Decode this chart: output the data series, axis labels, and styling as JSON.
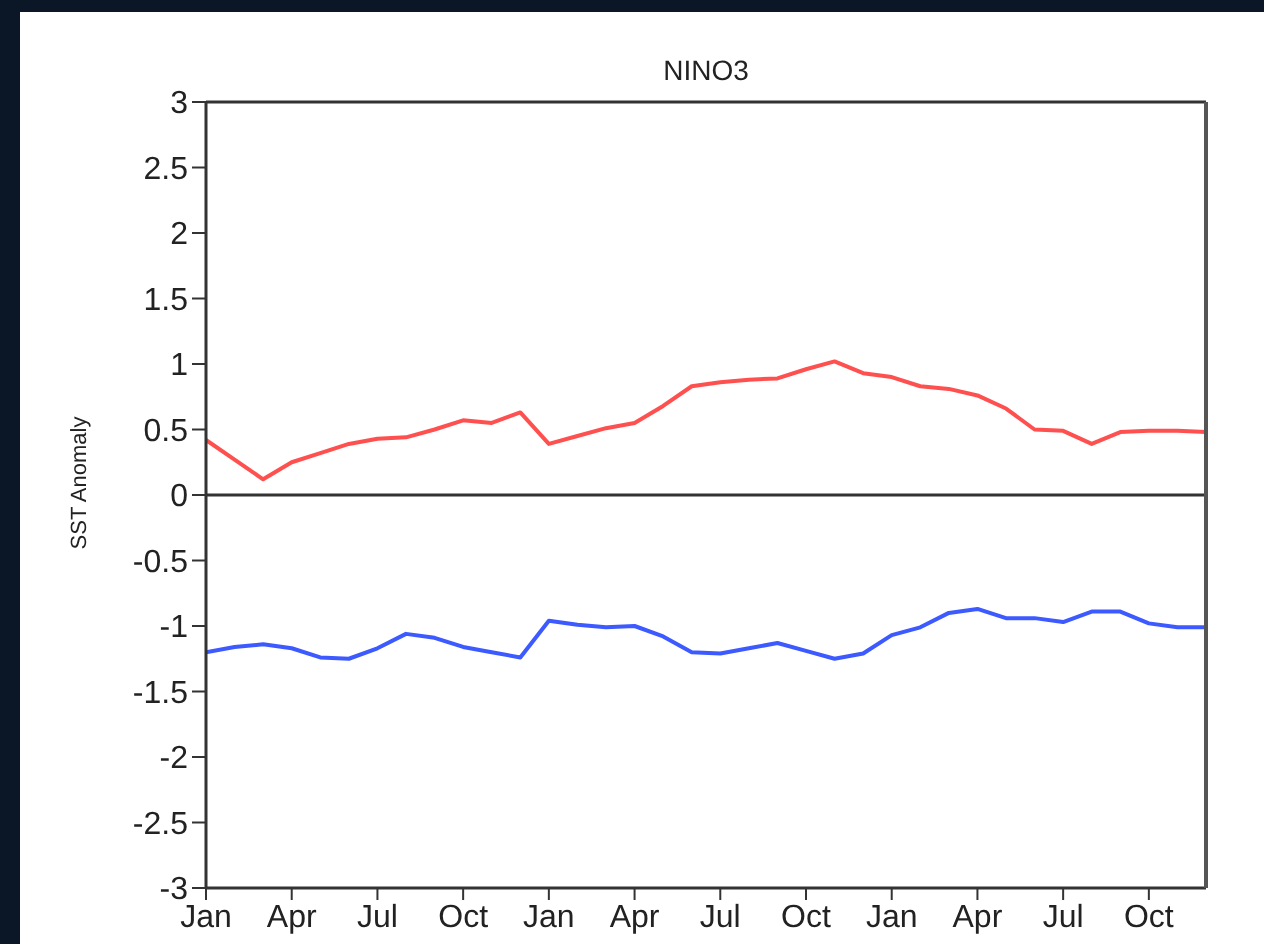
{
  "chart_data": {
    "type": "line",
    "title": "NINO3",
    "ylabel": "SST Anomaly",
    "categories": [
      "Jan",
      null,
      null,
      "Apr",
      null,
      null,
      "Jul",
      null,
      null,
      "Oct",
      null,
      null,
      "Jan",
      null,
      null,
      "Apr",
      null,
      null,
      "Jul",
      null,
      null,
      "Oct",
      null,
      null,
      "Jan",
      null,
      null,
      "Apr",
      null,
      null,
      "Jul",
      null,
      null,
      "Oct",
      null,
      null
    ],
    "series": [
      {
        "color": "#ff5050",
        "values": [
          0.42,
          0.27,
          0.12,
          0.25,
          0.32,
          0.39,
          0.43,
          0.44,
          0.5,
          0.57,
          0.55,
          0.63,
          0.39,
          0.45,
          0.51,
          0.55,
          0.68,
          0.83,
          0.86,
          0.88,
          0.89,
          0.96,
          1.02,
          0.93,
          0.9,
          0.83,
          0.81,
          0.76,
          0.66,
          0.5,
          0.49,
          0.39,
          0.48,
          0.49,
          0.49,
          0.48
        ]
      },
      {
        "color": "#3c5aff",
        "values": [
          -1.2,
          -1.16,
          -1.14,
          -1.17,
          -1.24,
          -1.25,
          -1.17,
          -1.06,
          -1.09,
          -1.16,
          -1.2,
          -1.24,
          -0.96,
          -0.99,
          -1.01,
          -1.0,
          -1.08,
          -1.2,
          -1.21,
          -1.17,
          -1.13,
          -1.19,
          -1.25,
          -1.21,
          -1.07,
          -1.01,
          -0.9,
          -0.87,
          -0.94,
          -0.94,
          -0.97,
          -0.89,
          -0.89,
          -0.98,
          -1.01,
          -1.01
        ]
      }
    ],
    "ylim": [
      -3,
      3
    ],
    "yticks": [
      -3,
      -2.5,
      -2,
      -1.5,
      -1,
      -0.5,
      0,
      0.5,
      1,
      1.5,
      2,
      2.5,
      3
    ],
    "ref_lines": [
      {
        "axis": "y",
        "value": 0,
        "color": "#333333"
      }
    ],
    "grid": false,
    "marker": "none",
    "line_style": "solid"
  }
}
